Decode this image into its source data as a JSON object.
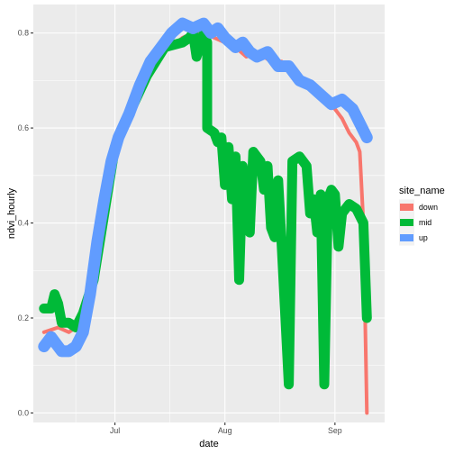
{
  "chart_data": {
    "type": "line",
    "xlabel": "date",
    "ylabel": "ndvi_hourly",
    "x_ticks": [
      {
        "date": "2019-07-01",
        "label": "Jul"
      },
      {
        "date": "2019-08-01",
        "label": "Aug"
      },
      {
        "date": "2019-09-01",
        "label": "Sep"
      }
    ],
    "xlim": [
      "2019-06-08",
      "2019-09-15"
    ],
    "y_ticks": [
      0.0,
      0.2,
      0.4,
      0.6,
      0.8
    ],
    "y_tick_labels": [
      "0.0",
      "0.2",
      "0.4",
      "0.6",
      "0.8"
    ],
    "ylim": [
      -0.02,
      0.86
    ],
    "grid": true,
    "legend": {
      "title": "site_name",
      "position": "right"
    },
    "series": [
      {
        "name": "down",
        "color": "#F8766D",
        "points": [
          [
            "2019-06-11",
            0.17
          ],
          [
            "2019-06-15",
            0.18
          ],
          [
            "2019-06-18",
            0.17
          ],
          [
            "2019-06-20",
            0.18
          ],
          [
            "2019-06-23",
            0.25
          ],
          [
            "2019-06-26",
            0.33
          ],
          [
            "2019-06-28",
            0.4
          ],
          [
            "2019-07-01",
            0.55
          ],
          [
            "2019-07-05",
            0.63
          ],
          [
            "2019-07-10",
            0.7
          ],
          [
            "2019-07-15",
            0.76
          ],
          [
            "2019-07-20",
            0.79
          ],
          [
            "2019-07-23",
            0.8
          ],
          [
            "2019-07-26",
            0.8
          ],
          [
            "2019-07-29",
            0.79
          ],
          [
            "2019-08-01",
            0.78
          ],
          [
            "2019-08-04",
            0.77
          ],
          [
            "2019-08-07",
            0.75
          ],
          [
            "2019-08-10",
            0.76
          ],
          [
            "2019-08-14",
            0.74
          ],
          [
            "2019-08-17",
            0.74
          ],
          [
            "2019-08-20",
            0.71
          ],
          [
            "2019-08-24",
            0.7
          ],
          [
            "2019-08-28",
            0.66
          ],
          [
            "2019-09-01",
            0.64
          ],
          [
            "2019-09-03",
            0.62
          ],
          [
            "2019-09-05",
            0.59
          ],
          [
            "2019-09-07",
            0.57
          ],
          [
            "2019-09-08",
            0.55
          ],
          [
            "2019-09-09",
            0.4
          ],
          [
            "2019-09-10",
            0.0
          ]
        ]
      },
      {
        "name": "mid",
        "color": "#00BA38",
        "points": [
          [
            "2019-06-11",
            0.22
          ],
          [
            "2019-06-13",
            0.22
          ],
          [
            "2019-06-14",
            0.25
          ],
          [
            "2019-06-15",
            0.23
          ],
          [
            "2019-06-16",
            0.19
          ],
          [
            "2019-06-18",
            0.19
          ],
          [
            "2019-06-20",
            0.18
          ],
          [
            "2019-06-22",
            0.21
          ],
          [
            "2019-06-25",
            0.28
          ],
          [
            "2019-06-28",
            0.42
          ],
          [
            "2019-07-01",
            0.56
          ],
          [
            "2019-07-05",
            0.63
          ],
          [
            "2019-07-10",
            0.71
          ],
          [
            "2019-07-15",
            0.77
          ],
          [
            "2019-07-20",
            0.78
          ],
          [
            "2019-07-22",
            0.79
          ],
          [
            "2019-07-23",
            0.8
          ],
          [
            "2019-07-24",
            0.75
          ],
          [
            "2019-07-26",
            0.8
          ],
          [
            "2019-07-27",
            0.78
          ],
          [
            "2019-07-27",
            0.6
          ],
          [
            "2019-07-29",
            0.59
          ],
          [
            "2019-07-30",
            0.57
          ],
          [
            "2019-07-31",
            0.58
          ],
          [
            "2019-08-01",
            0.48
          ],
          [
            "2019-08-02",
            0.56
          ],
          [
            "2019-08-03",
            0.45
          ],
          [
            "2019-08-04",
            0.54
          ],
          [
            "2019-08-05",
            0.28
          ],
          [
            "2019-08-06",
            0.52
          ],
          [
            "2019-08-07",
            0.42
          ],
          [
            "2019-08-08",
            0.38
          ],
          [
            "2019-08-09",
            0.55
          ],
          [
            "2019-08-11",
            0.53
          ],
          [
            "2019-08-12",
            0.47
          ],
          [
            "2019-08-13",
            0.52
          ],
          [
            "2019-08-14",
            0.39
          ],
          [
            "2019-08-15",
            0.37
          ],
          [
            "2019-08-16",
            0.49
          ],
          [
            "2019-08-17",
            0.35
          ],
          [
            "2019-08-19",
            0.06
          ],
          [
            "2019-08-20",
            0.53
          ],
          [
            "2019-08-22",
            0.54
          ],
          [
            "2019-08-24",
            0.52
          ],
          [
            "2019-08-25",
            0.42
          ],
          [
            "2019-08-26",
            0.45
          ],
          [
            "2019-08-27",
            0.38
          ],
          [
            "2019-08-28",
            0.46
          ],
          [
            "2019-08-29",
            0.06
          ],
          [
            "2019-08-30",
            0.45
          ],
          [
            "2019-08-31",
            0.47
          ],
          [
            "2019-09-01",
            0.46
          ],
          [
            "2019-09-02",
            0.35
          ],
          [
            "2019-09-03",
            0.42
          ],
          [
            "2019-09-05",
            0.44
          ],
          [
            "2019-09-07",
            0.43
          ],
          [
            "2019-09-09",
            0.4
          ],
          [
            "2019-09-10",
            0.2
          ]
        ]
      },
      {
        "name": "up",
        "color": "#619CFF",
        "points": [
          [
            "2019-06-11",
            0.14
          ],
          [
            "2019-06-13",
            0.16
          ],
          [
            "2019-06-14",
            0.15
          ],
          [
            "2019-06-16",
            0.13
          ],
          [
            "2019-06-18",
            0.13
          ],
          [
            "2019-06-20",
            0.14
          ],
          [
            "2019-06-22",
            0.17
          ],
          [
            "2019-06-24",
            0.25
          ],
          [
            "2019-06-26",
            0.36
          ],
          [
            "2019-06-28",
            0.45
          ],
          [
            "2019-06-30",
            0.53
          ],
          [
            "2019-07-02",
            0.58
          ],
          [
            "2019-07-05",
            0.63
          ],
          [
            "2019-07-08",
            0.69
          ],
          [
            "2019-07-11",
            0.74
          ],
          [
            "2019-07-14",
            0.77
          ],
          [
            "2019-07-17",
            0.8
          ],
          [
            "2019-07-20",
            0.82
          ],
          [
            "2019-07-23",
            0.81
          ],
          [
            "2019-07-26",
            0.82
          ],
          [
            "2019-07-28",
            0.8
          ],
          [
            "2019-07-30",
            0.81
          ],
          [
            "2019-08-01",
            0.79
          ],
          [
            "2019-08-04",
            0.77
          ],
          [
            "2019-08-06",
            0.78
          ],
          [
            "2019-08-08",
            0.76
          ],
          [
            "2019-08-10",
            0.75
          ],
          [
            "2019-08-13",
            0.76
          ],
          [
            "2019-08-16",
            0.73
          ],
          [
            "2019-08-19",
            0.73
          ],
          [
            "2019-08-22",
            0.7
          ],
          [
            "2019-08-25",
            0.69
          ],
          [
            "2019-08-28",
            0.67
          ],
          [
            "2019-08-31",
            0.65
          ],
          [
            "2019-09-03",
            0.66
          ],
          [
            "2019-09-06",
            0.64
          ],
          [
            "2019-09-08",
            0.61
          ],
          [
            "2019-09-10",
            0.58
          ]
        ]
      }
    ]
  }
}
